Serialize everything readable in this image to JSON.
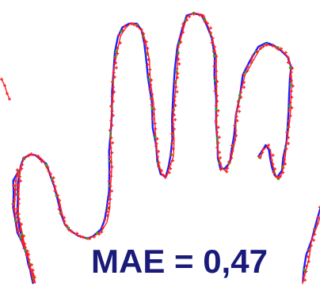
{
  "figure": {
    "metric_text": "MAE = 0,47"
  },
  "colors": {
    "contour_reference": "#1f1fff",
    "contour_estimate": "#ff2020",
    "landmark_markers": "#20b020",
    "metric_text": "#1a1a7a"
  },
  "icons": {
    "estimate_marker": "plus-marker",
    "landmark_marker": "dot-marker"
  }
}
